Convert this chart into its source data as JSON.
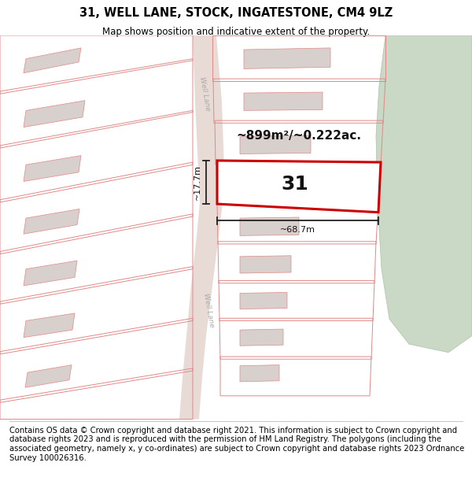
{
  "title": "31, WELL LANE, STOCK, INGATESTONE, CM4 9LZ",
  "subtitle": "Map shows position and indicative extent of the property.",
  "footer": "Contains OS data © Crown copyright and database right 2021. This information is subject to Crown copyright and database rights 2023 and is reproduced with the permission of HM Land Registry. The polygons (including the associated geometry, namely x, y co-ordinates) are subject to Crown copyright and database rights 2023 Ordnance Survey 100026316.",
  "bg_color": "#ffffff",
  "map_bg": "#f5eeeb",
  "green_color": "#c9d9c5",
  "road_color": "#e8dbd6",
  "plot_color": "#cc0000",
  "building_color": "#d8d0cc",
  "dim_color": "#222222",
  "area_label": "~899m²/~0.222ac.",
  "width_label": "~68.7m",
  "height_label": "~17.7m",
  "number_label": "31",
  "title_fontsize": 10.5,
  "subtitle_fontsize": 8.5,
  "footer_fontsize": 7.2,
  "road_text_color": "#aaaaaa",
  "pink_edge": "#e08888"
}
